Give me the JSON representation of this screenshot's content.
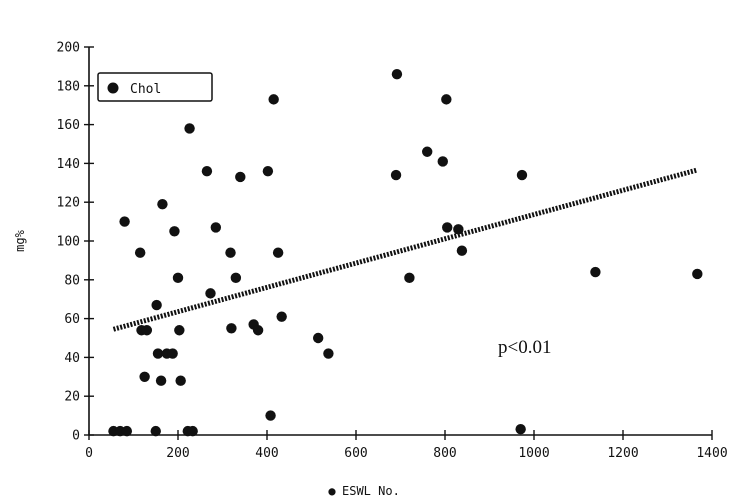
{
  "chart_data": {
    "type": "scatter",
    "xlabel": "ESWL No.",
    "xlabel_marker": "●",
    "ylabel": "mg%",
    "xlim": [
      0,
      1400
    ],
    "ylim": [
      0,
      200
    ],
    "x_ticks": [
      0,
      200,
      400,
      600,
      800,
      1000,
      1200,
      1400
    ],
    "y_ticks": [
      0,
      20,
      40,
      60,
      80,
      100,
      120,
      140,
      160,
      180,
      200
    ],
    "grid": false,
    "legend": {
      "placement": "top-left",
      "entries": [
        {
          "label": "Chol",
          "marker": "filled-circle"
        }
      ]
    },
    "annotation": "p<0.01",
    "trendline": {
      "x": [
        55,
        1365
      ],
      "y": [
        54.5,
        136.5
      ]
    },
    "series": [
      {
        "name": "Chol",
        "points": [
          [
            55,
            2
          ],
          [
            70,
            2
          ],
          [
            80,
            110
          ],
          [
            85,
            2
          ],
          [
            115,
            94
          ],
          [
            118,
            54
          ],
          [
            125,
            30
          ],
          [
            130,
            54
          ],
          [
            150,
            2
          ],
          [
            152,
            67
          ],
          [
            155,
            42
          ],
          [
            162,
            28
          ],
          [
            165,
            119
          ],
          [
            175,
            42
          ],
          [
            188,
            42
          ],
          [
            192,
            105
          ],
          [
            200,
            81
          ],
          [
            203,
            54
          ],
          [
            206,
            28
          ],
          [
            222,
            2
          ],
          [
            226,
            158
          ],
          [
            233,
            2
          ],
          [
            265,
            136
          ],
          [
            273,
            73
          ],
          [
            285,
            107
          ],
          [
            318,
            94
          ],
          [
            320,
            55
          ],
          [
            330,
            81
          ],
          [
            340,
            133
          ],
          [
            370,
            57
          ],
          [
            380,
            54
          ],
          [
            402,
            136
          ],
          [
            408,
            10
          ],
          [
            415,
            173
          ],
          [
            425,
            94
          ],
          [
            433,
            61
          ],
          [
            515,
            50
          ],
          [
            538,
            42
          ],
          [
            690,
            134
          ],
          [
            692,
            186
          ],
          [
            720,
            81
          ],
          [
            760,
            146
          ],
          [
            795,
            141
          ],
          [
            803,
            173
          ],
          [
            805,
            107
          ],
          [
            830,
            106
          ],
          [
            838,
            95
          ],
          [
            970,
            3
          ],
          [
            973,
            134
          ],
          [
            1138,
            84
          ],
          [
            1367,
            83
          ]
        ]
      }
    ]
  }
}
